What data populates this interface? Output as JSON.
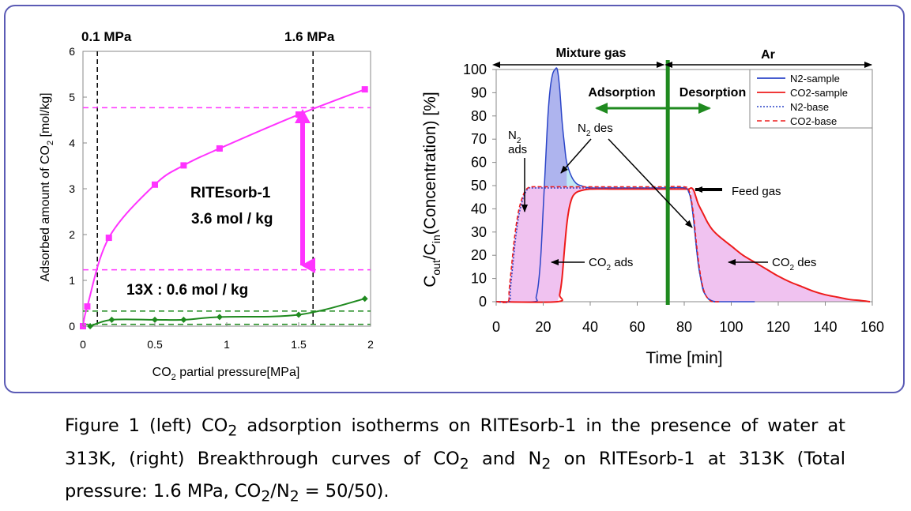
{
  "chart_data": [
    {
      "type": "line",
      "xlabel_parts": [
        "CO",
        "2",
        " partial pressure[MPa]"
      ],
      "ylabel_parts": [
        "Adsorbed amount of CO",
        "2",
        " [mol/kg]"
      ],
      "xlim": [
        0,
        2
      ],
      "ylim": [
        0,
        6
      ],
      "xticks": [
        "0",
        "0.5",
        "1",
        "1.5",
        "2"
      ],
      "yticks": [
        "0",
        "1",
        "2",
        "3",
        "4",
        "5",
        "6"
      ],
      "grid": false,
      "series": [
        {
          "color": "#ff33ff",
          "marker": "square",
          "x": [
            0.0,
            0.03,
            0.18,
            0.5,
            0.7,
            0.95,
            1.5,
            1.96
          ],
          "y": [
            0.0,
            0.43,
            1.93,
            3.09,
            3.51,
            3.88,
            4.62,
            5.17
          ]
        },
        {
          "color": "#1f8a1f",
          "marker": "diamond",
          "x": [
            0.05,
            0.2,
            0.5,
            0.7,
            0.95,
            1.5,
            1.96
          ],
          "y": [
            0.0,
            0.14,
            0.14,
            0.14,
            0.2,
            0.25,
            0.6
          ]
        }
      ],
      "reference_lines": {
        "vertical_MPa": [
          0.1,
          1.6
        ],
        "vertical_labels": [
          "0.1 MPa",
          "1.6 MPa"
        ],
        "magenta_horizontal": [
          4.77,
          1.23
        ],
        "green_horizontal": [
          0.33,
          0.04
        ]
      },
      "annotations": {
        "ritesorb_name": "RITEsorb-1",
        "ritesorb_value": "3.6 mol / kg",
        "zeolite": "13X : 0.6 mol / kg"
      }
    },
    {
      "type": "area",
      "xlabel": "Time [min]",
      "ylabel_parts": [
        "C",
        "out",
        "/C",
        "in",
        "(Concentration) [%]"
      ],
      "xlim": [
        0,
        160
      ],
      "ylim": [
        0,
        100
      ],
      "xticks": [
        "0",
        "20",
        "40",
        "60",
        "80",
        "100",
        "120",
        "140",
        "160"
      ],
      "yticks": [
        "0",
        "10",
        "20",
        "30",
        "40",
        "50",
        "60",
        "70",
        "80",
        "90",
        "100"
      ],
      "grid": false,
      "legend": {
        "position": "top-right",
        "entries": [
          {
            "label": "N2-sample",
            "color": "#2b45c8",
            "style": "solid"
          },
          {
            "label": "CO2-sample",
            "color": "#ee1c1c",
            "style": "solid"
          },
          {
            "label": "N2-base",
            "color": "#2b45c8",
            "style": "dotted"
          },
          {
            "label": "CO2-base",
            "color": "#ee1c1c",
            "style": "dashed"
          }
        ]
      },
      "series": [
        {
          "name": "N2-sample",
          "color": "#2b45c8",
          "style": "solid",
          "x": [
            0,
            16,
            17,
            18,
            19,
            20,
            21,
            22,
            23,
            24,
            25,
            26,
            27,
            28,
            29,
            30,
            32,
            34,
            36,
            40,
            50,
            60,
            70,
            80,
            82,
            83,
            84,
            85,
            86,
            87,
            88,
            89,
            90,
            91,
            92,
            93,
            95,
            100,
            110
          ],
          "y": [
            0,
            0,
            2,
            8,
            20,
            40,
            60,
            80,
            92,
            98,
            100,
            100,
            92,
            78,
            68,
            60,
            54,
            51,
            50,
            49,
            49,
            49,
            49,
            49,
            47,
            43,
            35,
            25,
            16,
            10,
            5,
            3,
            1.5,
            0.8,
            0.3,
            0.1,
            0,
            0,
            0
          ]
        },
        {
          "name": "CO2-sample",
          "color": "#ee1c1c",
          "style": "solid",
          "x": [
            0,
            26,
            27,
            28,
            29,
            30,
            31,
            32,
            33,
            35,
            40,
            50,
            60,
            70,
            80,
            82,
            83,
            84,
            85,
            86,
            88,
            90,
            92,
            95,
            100,
            105,
            110,
            115,
            120,
            125,
            130,
            135,
            140,
            145,
            150,
            155,
            159
          ],
          "y": [
            0,
            0,
            3,
            10,
            22,
            33,
            40,
            44,
            46,
            47.5,
            48.5,
            48.5,
            48.5,
            48.5,
            48.5,
            48.5,
            49,
            48,
            45,
            42,
            38,
            34,
            31,
            28,
            24,
            20,
            17,
            14,
            11,
            8.5,
            6.5,
            4.5,
            3,
            2,
            1,
            0.5,
            0
          ]
        },
        {
          "name": "N2-base",
          "color": "#2b45c8",
          "style": "dotted",
          "x": [
            0,
            5.5,
            6,
            7,
            8,
            9,
            10,
            11,
            12,
            13,
            14,
            15,
            20,
            30,
            40,
            50,
            60,
            70,
            80,
            82,
            83,
            84,
            85,
            86,
            87,
            88,
            89,
            90,
            91,
            92,
            95
          ],
          "y": [
            0,
            0,
            5,
            15,
            25,
            33,
            39,
            43,
            46,
            48,
            49,
            49,
            49,
            49,
            49,
            49,
            49,
            49,
            49,
            47,
            43,
            35,
            25,
            16,
            10,
            6,
            3,
            1.5,
            0.5,
            0,
            0
          ]
        },
        {
          "name": "CO2-base",
          "color": "#ee1c1c",
          "style": "dashed",
          "x": [
            0,
            5,
            5.5,
            6.5,
            7.5,
            8.5,
            9.5,
            10.5,
            11.5,
            12.5,
            13.5,
            15,
            20,
            30,
            40,
            50,
            60,
            70,
            80,
            82,
            83,
            84,
            85,
            86,
            87,
            88,
            89,
            90,
            91,
            92,
            95
          ],
          "y": [
            0,
            0,
            5,
            15,
            25,
            33,
            39,
            43,
            46,
            48,
            49,
            49.5,
            49.5,
            49.5,
            49.5,
            49.5,
            49.5,
            49.5,
            49.5,
            48,
            44,
            37,
            27,
            18,
            11,
            6,
            3,
            1.5,
            0.5,
            0,
            0
          ]
        }
      ],
      "vertical_line": {
        "x": 73,
        "color": "#1f8a1f"
      },
      "annotations": {
        "mixture_gas": "Mixture gas",
        "ar": "Ar",
        "adsorption": "Adsorption",
        "desorption": "Desorption",
        "n2_ads_n": "N",
        "n2_ads_sub": "2",
        "n2_ads_word": "ads",
        "n2_des_n": "N",
        "n2_des_sub": "2",
        "n2_des_word": " des",
        "feed_gas": "Feed gas",
        "co2_ads_co": "CO",
        "co2_ads_sub": "2",
        "co2_ads_word": " ads",
        "co2_des_co": "CO",
        "co2_des_sub": "2",
        "co2_des_word": " des"
      }
    }
  ],
  "caption_parts": [
    "Figure 1 (left) CO",
    "2",
    " adsorption isotherms on RITEsorb-1 in the presence of water at 313K, (right) Breakthrough curves of CO",
    "2",
    " and N",
    "2",
    " on RITEsorb-1 at 313K (Total pressure: 1.6 MPa, CO",
    "2",
    "/N",
    "2",
    " = 50/50)."
  ]
}
